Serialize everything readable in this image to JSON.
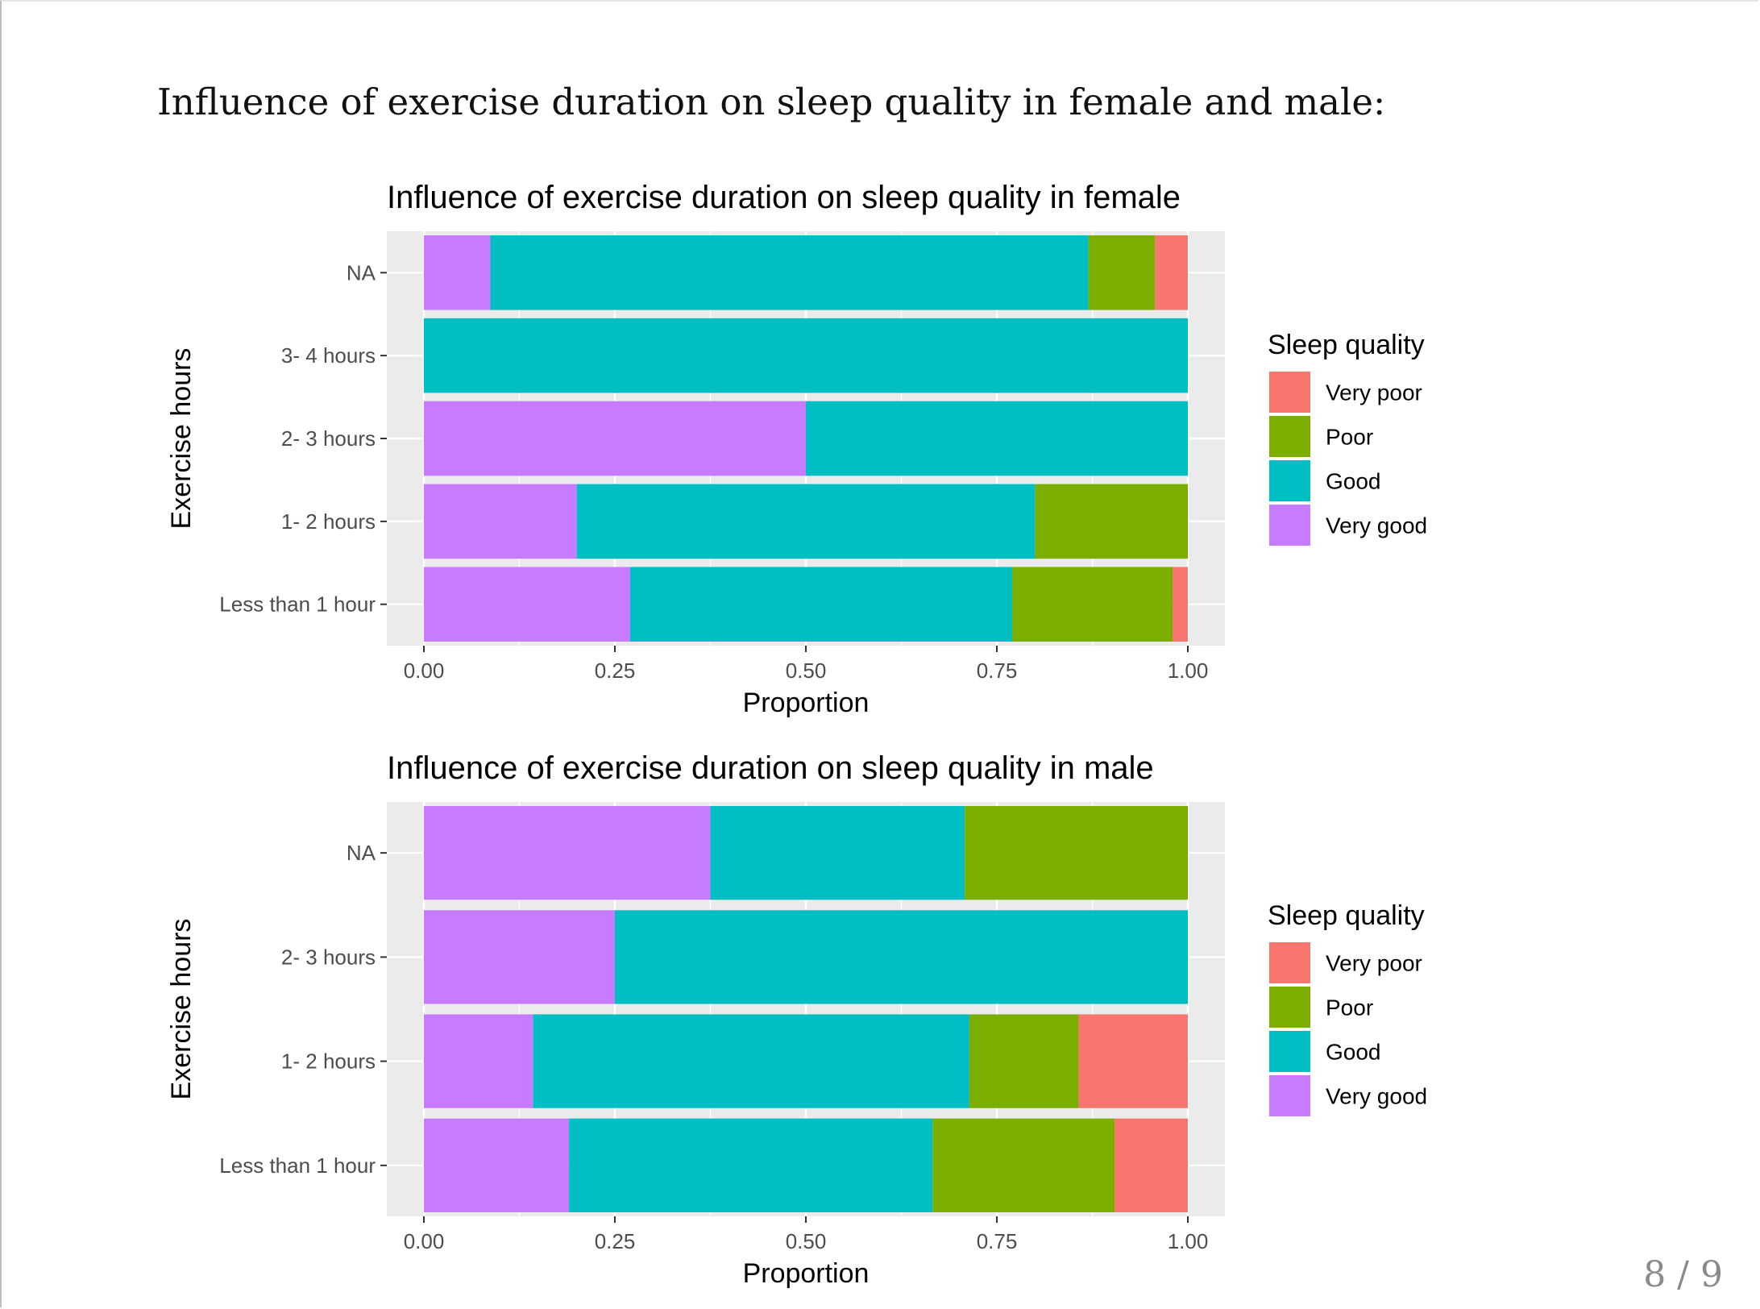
{
  "slide": {
    "heading": "Influence of exercise duration on sleep quality in female and male:",
    "page_number": "8 / 9"
  },
  "colors": {
    "Very poor": "#F8766D",
    "Poor": "#7CAE00",
    "Good": "#00BFC4",
    "Very good": "#C77CFF",
    "panel_bg": "#EBEBEB",
    "grid": "#FFFFFF"
  },
  "chart_data": [
    {
      "type": "bar",
      "orientation": "horizontal",
      "stacked": true,
      "title": "Influence of exercise duration on sleep quality in female",
      "xlabel": "Proportion",
      "ylabel": "Exercise hours",
      "xlim": [
        0,
        1
      ],
      "xticks": [
        "0.00",
        "0.25",
        "0.50",
        "0.75",
        "1.00"
      ],
      "categories": [
        "NA",
        "3- 4 hours",
        "2- 3 hours",
        "1- 2 hours",
        "Less than 1 hour"
      ],
      "series": [
        {
          "name": "Very good",
          "values": [
            0.087,
            0.0,
            0.5,
            0.2,
            0.27
          ]
        },
        {
          "name": "Good",
          "values": [
            0.783,
            1.0,
            0.5,
            0.6,
            0.5
          ]
        },
        {
          "name": "Poor",
          "values": [
            0.087,
            0.0,
            0.0,
            0.2,
            0.21
          ]
        },
        {
          "name": "Very poor",
          "values": [
            0.043,
            0.0,
            0.0,
            0.0,
            0.02
          ]
        }
      ],
      "legend": {
        "title": "Sleep quality",
        "position": "right",
        "entries": [
          "Very poor",
          "Poor",
          "Good",
          "Very good"
        ]
      },
      "grid": true
    },
    {
      "type": "bar",
      "orientation": "horizontal",
      "stacked": true,
      "title": "Influence of exercise duration on sleep quality in male",
      "xlabel": "Proportion",
      "ylabel": "Exercise hours",
      "xlim": [
        0,
        1
      ],
      "xticks": [
        "0.00",
        "0.25",
        "0.50",
        "0.75",
        "1.00"
      ],
      "categories": [
        "NA",
        "2- 3 hours",
        "1- 2 hours",
        "Less than 1 hour"
      ],
      "series": [
        {
          "name": "Very good",
          "values": [
            0.375,
            0.25,
            0.143,
            0.19
          ]
        },
        {
          "name": "Good",
          "values": [
            0.333,
            0.75,
            0.571,
            0.476
          ]
        },
        {
          "name": "Poor",
          "values": [
            0.292,
            0.0,
            0.143,
            0.238
          ]
        },
        {
          "name": "Very poor",
          "values": [
            0.0,
            0.0,
            0.143,
            0.096
          ]
        }
      ],
      "legend": {
        "title": "Sleep quality",
        "position": "right",
        "entries": [
          "Very poor",
          "Poor",
          "Good",
          "Very good"
        ]
      },
      "grid": true
    }
  ]
}
